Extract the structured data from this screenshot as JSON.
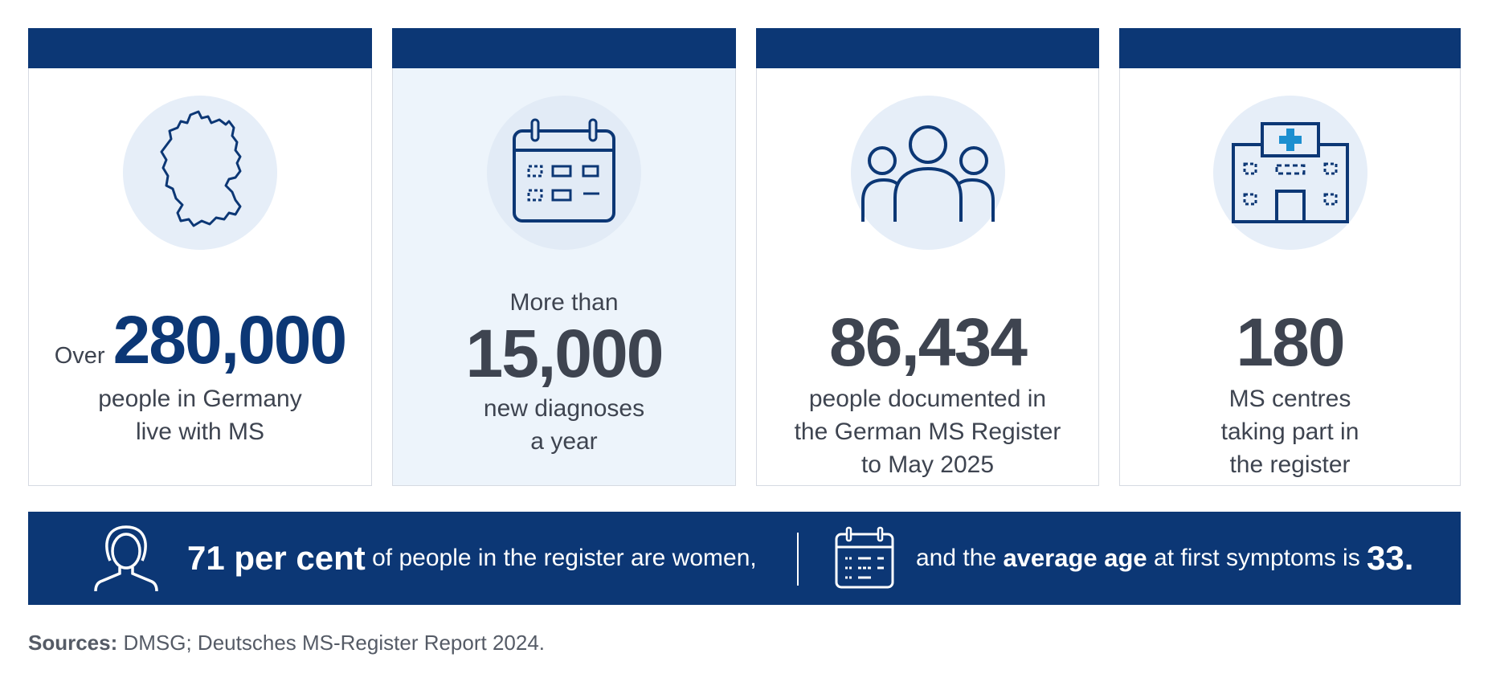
{
  "cards": [
    {
      "prefix": "Over",
      "value": "280,000",
      "line1": "people in Germany",
      "line2": "live with MS",
      "icon": "germany-map-icon"
    },
    {
      "lead": "More than",
      "value": "15,000",
      "line1": "new diagnoses",
      "line2": "a year",
      "icon": "calendar-icon"
    },
    {
      "value": "86,434",
      "line1": "people documented in",
      "line2": "the German MS Register",
      "line3": "to May 2025",
      "icon": "people-group-icon"
    },
    {
      "value": "180",
      "line1": "MS centres",
      "line2": "taking part in",
      "line3": "the register",
      "icon": "hospital-icon"
    }
  ],
  "banner": {
    "women_pct": "71 per cent",
    "women_text": " of people in the register are women,",
    "age_pre": "and the ",
    "age_bold": "average age",
    "age_mid": " at first symptoms is ",
    "age_value": "33",
    "age_end": ".",
    "icons": [
      "woman-icon",
      "calendar-icon"
    ]
  },
  "sources": {
    "label": "Sources:",
    "text": " DMSG; Deutsches MS-Register Report 2024."
  },
  "colors": {
    "navy": "#0c3775",
    "tint": "#edf4fb",
    "circle": "#e6eef8",
    "text": "#3e4450"
  }
}
